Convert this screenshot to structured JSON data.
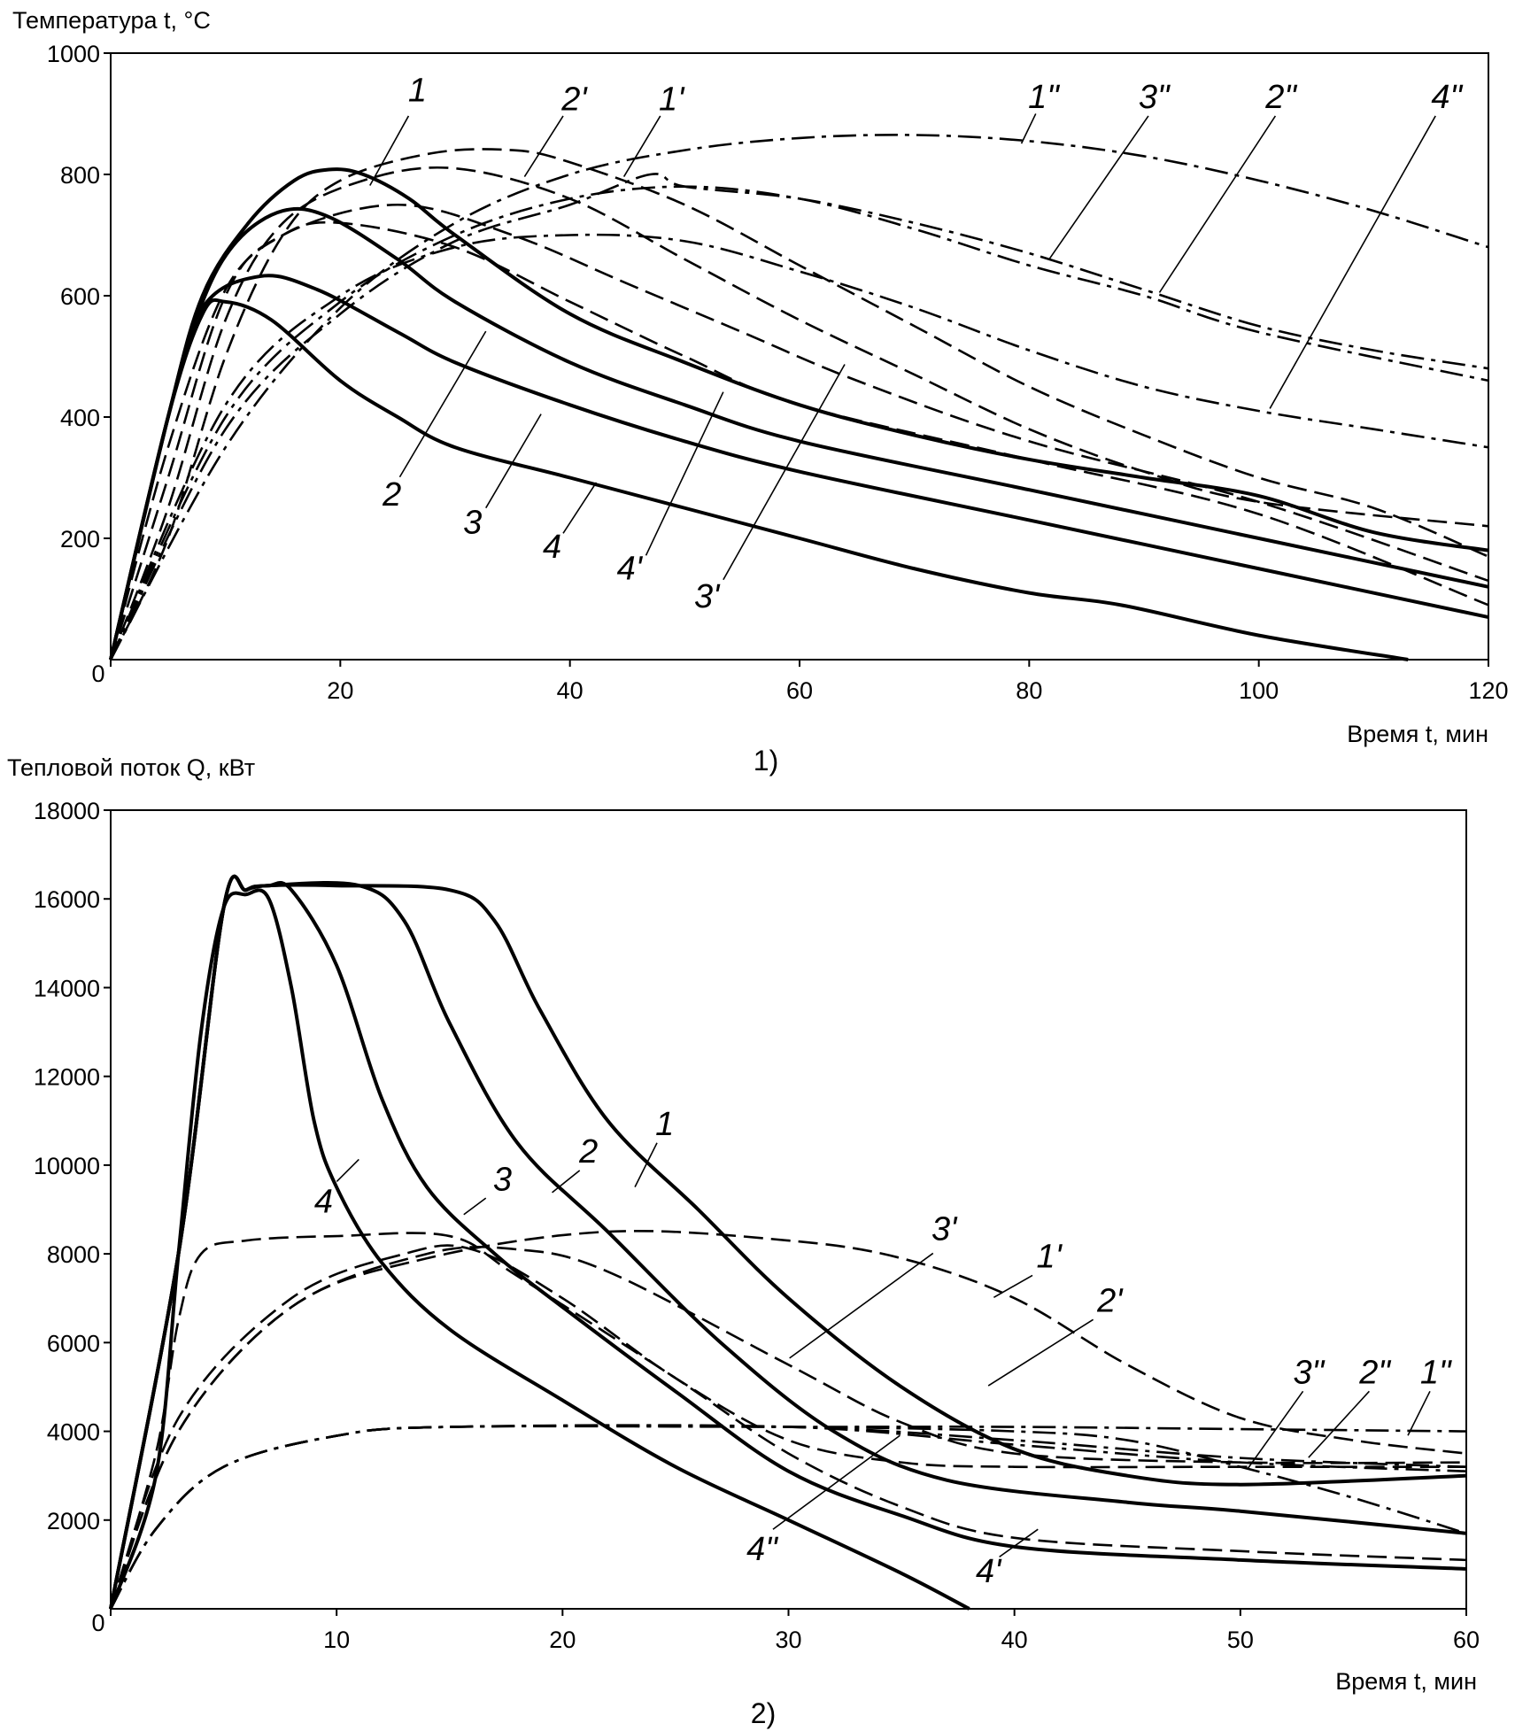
{
  "chart_data": [
    {
      "type": "line",
      "title": "1)",
      "xlabel": "Время t, мин",
      "ylabel": "Температура t, °C",
      "xlim": [
        0,
        120
      ],
      "ylim": [
        0,
        1000
      ],
      "xticks": [
        0,
        20,
        40,
        60,
        80,
        100,
        120
      ],
      "yticks": [
        200,
        400,
        600,
        800,
        1000
      ],
      "grid": false,
      "series": [
        {
          "name": "1",
          "style": "solid",
          "x": [
            0,
            5,
            8,
            12,
            16,
            19,
            22,
            26,
            30,
            40,
            50,
            60,
            70,
            80,
            90,
            100,
            110,
            120
          ],
          "y": [
            0,
            400,
            600,
            720,
            790,
            808,
            800,
            760,
            700,
            570,
            490,
            420,
            370,
            330,
            300,
            270,
            210,
            180
          ]
        },
        {
          "name": "2",
          "style": "solid",
          "x": [
            0,
            5,
            8,
            11,
            15,
            19,
            25,
            30,
            40,
            50,
            60,
            80,
            100,
            120
          ],
          "y": [
            0,
            400,
            590,
            690,
            740,
            730,
            660,
            590,
            490,
            420,
            360,
            280,
            200,
            120
          ]
        },
        {
          "name": "3",
          "style": "solid",
          "x": [
            0,
            5,
            8,
            13,
            18,
            25,
            30,
            40,
            50,
            60,
            80,
            100,
            120
          ],
          "y": [
            0,
            400,
            580,
            632,
            610,
            540,
            490,
            420,
            360,
            310,
            230,
            150,
            70
          ]
        },
        {
          "name": "4",
          "style": "solid",
          "x": [
            0,
            5,
            8,
            10,
            14,
            20,
            25,
            30,
            40,
            50,
            60,
            70,
            80,
            88,
            100,
            113
          ],
          "y": [
            0,
            400,
            570,
            590,
            560,
            460,
            400,
            350,
            300,
            250,
            200,
            150,
            110,
            90,
            40,
            0
          ]
        },
        {
          "name": "1'",
          "style": "dashed",
          "x": [
            0,
            5,
            10,
            15,
            20,
            28,
            35,
            40,
            50,
            60,
            70,
            80,
            90,
            100,
            110,
            120
          ],
          "y": [
            0,
            200,
            500,
            700,
            790,
            835,
            840,
            820,
            750,
            650,
            550,
            450,
            370,
            300,
            250,
            170
          ]
        },
        {
          "name": "2'",
          "style": "dashed",
          "x": [
            0,
            5,
            10,
            15,
            22,
            30,
            40,
            50,
            60,
            70,
            80,
            90,
            100,
            120
          ],
          "y": [
            0,
            250,
            560,
            720,
            790,
            810,
            760,
            660,
            560,
            470,
            380,
            310,
            260,
            220
          ]
        },
        {
          "name": "3'",
          "style": "dashed",
          "x": [
            0,
            5,
            10,
            15,
            25,
            35,
            45,
            55,
            65,
            80,
            100,
            120
          ],
          "y": [
            0,
            300,
            600,
            700,
            750,
            700,
            620,
            540,
            460,
            360,
            260,
            130
          ]
        },
        {
          "name": "4'",
          "style": "dashed",
          "x": [
            0,
            5,
            10,
            15,
            20,
            30,
            40,
            50,
            60,
            80,
            100,
            120
          ],
          "y": [
            0,
            350,
            610,
            700,
            720,
            680,
            590,
            500,
            420,
            330,
            240,
            90
          ]
        },
        {
          "name": "1\"",
          "style": "dashdot",
          "x": [
            0,
            10,
            20,
            30,
            40,
            50,
            60,
            70,
            80,
            90,
            100,
            110,
            120
          ],
          "y": [
            0,
            350,
            580,
            720,
            800,
            840,
            860,
            865,
            855,
            830,
            790,
            740,
            680
          ]
        },
        {
          "name": "3\"",
          "style": "dashdot",
          "x": [
            0,
            10,
            20,
            30,
            40,
            47,
            50,
            60,
            70,
            80,
            90,
            100,
            110,
            120
          ],
          "y": [
            0,
            380,
            570,
            690,
            750,
            800,
            780,
            760,
            720,
            670,
            610,
            550,
            510,
            480
          ]
        },
        {
          "name": "2\"",
          "style": "dashdot",
          "x": [
            0,
            10,
            20,
            30,
            40,
            50,
            60,
            70,
            80,
            90,
            100,
            120
          ],
          "y": [
            0,
            400,
            590,
            700,
            760,
            780,
            760,
            710,
            650,
            600,
            540,
            460
          ]
        },
        {
          "name": "4\"",
          "style": "dashdot",
          "x": [
            0,
            10,
            20,
            30,
            40,
            50,
            60,
            70,
            80,
            90,
            100,
            110,
            120
          ],
          "y": [
            0,
            420,
            600,
            680,
            700,
            690,
            640,
            580,
            510,
            450,
            410,
            380,
            350
          ]
        }
      ]
    },
    {
      "type": "line",
      "title": "2)",
      "xlabel": "Время t, мин",
      "ylabel": "Тепловой поток Q, кВт",
      "xlim": [
        0,
        60
      ],
      "ylim": [
        0,
        18000
      ],
      "xticks": [
        0,
        10,
        20,
        30,
        40,
        50,
        60
      ],
      "yticks": [
        2000,
        4000,
        6000,
        8000,
        10000,
        12000,
        14000,
        16000,
        18000
      ],
      "grid": false,
      "series": [
        {
          "name": "1",
          "style": "solid",
          "x": [
            0,
            3,
            5,
            6,
            7,
            10,
            15,
            17,
            19,
            22,
            26,
            30,
            35,
            40,
            45,
            50,
            60
          ],
          "y": [
            0,
            8000,
            15800,
            16200,
            16300,
            16300,
            16200,
            15500,
            13500,
            11000,
            9000,
            7000,
            5000,
            3600,
            3000,
            2800,
            3000
          ]
        },
        {
          "name": "2",
          "style": "solid",
          "x": [
            0,
            3,
            5,
            6,
            7,
            11,
            13,
            15,
            18,
            22,
            27,
            32,
            37,
            45,
            50,
            60
          ],
          "y": [
            0,
            8000,
            15800,
            16200,
            16300,
            16300,
            15500,
            13200,
            10500,
            8500,
            6000,
            4000,
            2900,
            2400,
            2200,
            1700
          ]
        },
        {
          "name": "3",
          "style": "solid",
          "x": [
            0,
            3,
            5,
            6,
            7,
            8,
            10,
            12,
            14,
            17,
            20,
            25,
            30,
            35,
            40,
            50,
            60
          ],
          "y": [
            0,
            8000,
            15800,
            16200,
            16300,
            16200,
            14500,
            11500,
            9500,
            8000,
            6800,
            4900,
            3100,
            2100,
            1400,
            1100,
            900
          ]
        },
        {
          "name": "4",
          "style": "solid",
          "x": [
            0,
            2,
            3,
            4,
            5,
            6,
            7,
            8,
            9,
            10,
            12,
            15,
            20,
            25,
            30,
            35,
            38
          ],
          "y": [
            0,
            3000,
            8000,
            13000,
            15800,
            16100,
            16000,
            14000,
            11000,
            9500,
            7800,
            6300,
            4700,
            3200,
            2000,
            800,
            0
          ]
        },
        {
          "name": "1'",
          "style": "dashed",
          "x": [
            0,
            3,
            8,
            14,
            22,
            30,
            35,
            40,
            45,
            50,
            55,
            60
          ],
          "y": [
            0,
            4000,
            6800,
            7900,
            8500,
            8300,
            7900,
            7000,
            5500,
            4300,
            3800,
            3500
          ]
        },
        {
          "name": "2'",
          "style": "dashed",
          "x": [
            0,
            3,
            8,
            14,
            18,
            22,
            30,
            35,
            40,
            50,
            60
          ],
          "y": [
            0,
            4000,
            6800,
            8000,
            8100,
            7600,
            5500,
            4200,
            3500,
            3300,
            3300
          ]
        },
        {
          "name": "3'",
          "style": "dashed",
          "x": [
            0,
            3,
            8,
            13,
            16,
            20,
            25,
            30,
            35,
            40,
            50,
            60
          ],
          "y": [
            0,
            4300,
            7000,
            8000,
            8100,
            7000,
            5200,
            3800,
            3300,
            3200,
            3200,
            3200
          ]
        },
        {
          "name": "4'",
          "style": "dashed",
          "x": [
            0,
            2,
            3,
            4,
            6,
            10,
            15,
            18,
            25,
            30,
            35,
            40,
            50,
            60
          ],
          "y": [
            0,
            3500,
            6500,
            8000,
            8300,
            8400,
            8400,
            7500,
            5200,
            3500,
            2300,
            1600,
            1300,
            1100
          ]
        },
        {
          "name": "1\"",
          "style": "dashdot",
          "x": [
            0,
            2,
            5,
            10,
            15,
            30,
            40,
            50,
            60
          ],
          "y": [
            0,
            1800,
            3200,
            3900,
            4100,
            4100,
            4100,
            4050,
            4000
          ]
        },
        {
          "name": "2\"",
          "style": "dashdot",
          "x": [
            0,
            2,
            5,
            10,
            15,
            30,
            40,
            50,
            60
          ],
          "y": [
            0,
            1800,
            3200,
            3900,
            4100,
            4100,
            3800,
            3400,
            3200
          ]
        },
        {
          "name": "3\"",
          "style": "dashdot",
          "x": [
            0,
            2,
            5,
            10,
            15,
            30,
            40,
            50,
            60
          ],
          "y": [
            0,
            1800,
            3200,
            3900,
            4100,
            4100,
            3700,
            3300,
            3100
          ]
        },
        {
          "name": "4\"",
          "style": "dashdot",
          "x": [
            0,
            2,
            5,
            10,
            15,
            30,
            40,
            45,
            50,
            55,
            60
          ],
          "y": [
            0,
            1800,
            3200,
            3900,
            4100,
            4100,
            4000,
            3800,
            3200,
            2500,
            1700
          ]
        }
      ]
    }
  ]
}
